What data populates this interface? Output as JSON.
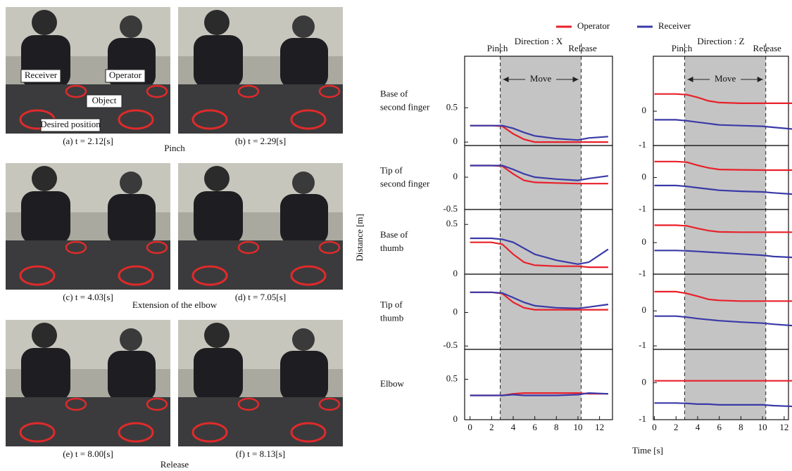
{
  "photos": [
    {
      "caption": "(a) t = 2.12[s]"
    },
    {
      "caption": "(b) t = 2.29[s]"
    },
    {
      "caption": "(c) t = 4.03[s]"
    },
    {
      "caption": "(d) t = 7.05[s]"
    },
    {
      "caption": "(e) t = 8.00[s]"
    },
    {
      "caption": "(f) t = 8.13[s]"
    }
  ],
  "photo_groups": [
    "Pinch",
    "Extension of the elbow",
    "Release"
  ],
  "photo_labels": {
    "receiver": "Receiver",
    "operator": "Operator",
    "object": "Object",
    "desired": "Desired position"
  },
  "figure": {
    "ylabel": "Distance [m]",
    "xlabel": "Time [s]",
    "rows": [
      [
        "Base of",
        "second finger"
      ],
      [
        "Tip of",
        "second finger"
      ],
      [
        "Base of",
        "thumb"
      ],
      [
        "Tip of",
        "thumb"
      ],
      [
        "Elbow"
      ]
    ],
    "pinch": "Pinch",
    "release": "Release",
    "move": "Move",
    "move_interval": [
      2.8,
      10.3
    ]
  },
  "chart_data": [
    {
      "type": "line",
      "title": "Direction : X",
      "x": [
        0,
        2,
        3,
        4,
        5,
        6,
        8,
        10,
        11,
        12.8
      ],
      "xlim": [
        -0.5,
        13.2
      ],
      "ylim": [
        -0.05,
        1.25
      ],
      "yticks": [
        0,
        0.5
      ],
      "series": [
        {
          "name": "Operator",
          "color": "#e8202a",
          "values": [
            0.24,
            0.24,
            0.23,
            0.12,
            0.04,
            0.0,
            0.0,
            0.0,
            0.0,
            0.0
          ]
        },
        {
          "name": "Receiver",
          "color": "#3a3aa8",
          "values": [
            0.24,
            0.24,
            0.24,
            0.2,
            0.14,
            0.09,
            0.05,
            0.03,
            0.06,
            0.08
          ]
        }
      ]
    },
    {
      "type": "line",
      "x": [
        0,
        2,
        3,
        4,
        5,
        6,
        8,
        10,
        11,
        12.8
      ],
      "xlim": [
        -0.5,
        13.2
      ],
      "ylim": [
        -0.5,
        0.49
      ],
      "yticks": [
        -0.5,
        0
      ],
      "series": [
        {
          "name": "Operator",
          "color": "#e8202a",
          "values": [
            0.18,
            0.18,
            0.17,
            0.05,
            -0.05,
            -0.08,
            -0.09,
            -0.1,
            -0.1,
            -0.1
          ]
        },
        {
          "name": "Receiver",
          "color": "#3a3aa8",
          "values": [
            0.18,
            0.18,
            0.18,
            0.12,
            0.05,
            0.0,
            -0.03,
            -0.05,
            -0.02,
            0.02
          ]
        }
      ]
    },
    {
      "type": "line",
      "x": [
        0,
        2,
        3,
        4,
        5,
        6,
        8,
        10,
        11,
        12.8
      ],
      "xlim": [
        -0.5,
        13.2
      ],
      "ylim": [
        0,
        0.65
      ],
      "yticks": [
        0,
        0.5
      ],
      "series": [
        {
          "name": "Operator",
          "color": "#e8202a",
          "values": [
            0.32,
            0.32,
            0.3,
            0.2,
            0.12,
            0.09,
            0.08,
            0.08,
            0.07,
            0.07
          ]
        },
        {
          "name": "Receiver",
          "color": "#3a3aa8",
          "values": [
            0.36,
            0.36,
            0.35,
            0.32,
            0.26,
            0.2,
            0.14,
            0.1,
            0.12,
            0.25
          ]
        }
      ]
    },
    {
      "type": "line",
      "x": [
        0,
        2,
        3,
        4,
        5,
        6,
        8,
        10,
        11,
        12.8
      ],
      "xlim": [
        -0.5,
        13.2
      ],
      "ylim": [
        -0.55,
        0.57
      ],
      "yticks": [
        -0.5,
        0
      ],
      "series": [
        {
          "name": "Operator",
          "color": "#e8202a",
          "values": [
            0.3,
            0.3,
            0.28,
            0.15,
            0.07,
            0.04,
            0.04,
            0.04,
            0.04,
            0.04
          ]
        },
        {
          "name": "Receiver",
          "color": "#3a3aa8",
          "values": [
            0.3,
            0.3,
            0.29,
            0.22,
            0.15,
            0.1,
            0.07,
            0.06,
            0.08,
            0.12
          ]
        }
      ]
    },
    {
      "type": "line",
      "x": [
        0,
        2,
        3,
        4,
        5,
        6,
        8,
        10,
        11,
        12.8
      ],
      "xlim": [
        -0.5,
        13.2
      ],
      "ylim": [
        0,
        0.87
      ],
      "yticks": [
        0,
        0.5
      ],
      "xticks": [
        0,
        2,
        4,
        6,
        8,
        10,
        12
      ],
      "series": [
        {
          "name": "Operator",
          "color": "#e8202a",
          "values": [
            0.3,
            0.3,
            0.3,
            0.32,
            0.33,
            0.33,
            0.33,
            0.33,
            0.32,
            0.32
          ]
        },
        {
          "name": "Receiver",
          "color": "#3a3aa8",
          "values": [
            0.3,
            0.3,
            0.3,
            0.31,
            0.3,
            0.3,
            0.3,
            0.31,
            0.33,
            0.32
          ]
        }
      ]
    },
    {
      "type": "line",
      "title": "Direction : Z",
      "x": [
        0,
        2,
        3,
        4,
        5,
        6,
        8,
        10,
        11,
        12.8
      ],
      "xlim": [
        -0.1,
        12.4
      ],
      "ylim": [
        -1,
        1.6
      ],
      "yticks": [
        -1,
        0
      ],
      "series": [
        {
          "name": "Operator",
          "color": "#e8202a",
          "values": [
            0.5,
            0.5,
            0.48,
            0.4,
            0.3,
            0.25,
            0.23,
            0.23,
            0.23,
            0.23
          ]
        },
        {
          "name": "Receiver",
          "color": "#3a3aa8",
          "values": [
            -0.25,
            -0.25,
            -0.28,
            -0.32,
            -0.36,
            -0.4,
            -0.42,
            -0.44,
            -0.47,
            -0.52
          ]
        }
      ]
    },
    {
      "type": "line",
      "x": [
        0,
        2,
        3,
        4,
        5,
        6,
        8,
        10,
        11,
        12.8
      ],
      "xlim": [
        -0.1,
        12.4
      ],
      "ylim": [
        -1,
        1
      ],
      "yticks": [
        -1,
        0
      ],
      "series": [
        {
          "name": "Operator",
          "color": "#e8202a",
          "values": [
            0.5,
            0.5,
            0.48,
            0.38,
            0.3,
            0.25,
            0.24,
            0.23,
            0.23,
            0.23
          ]
        },
        {
          "name": "Receiver",
          "color": "#3a3aa8",
          "values": [
            -0.25,
            -0.25,
            -0.28,
            -0.32,
            -0.36,
            -0.4,
            -0.43,
            -0.45,
            -0.48,
            -0.52
          ]
        }
      ]
    },
    {
      "type": "line",
      "x": [
        0,
        2,
        3,
        4,
        5,
        6,
        8,
        10,
        11,
        12.8
      ],
      "xlim": [
        -0.1,
        12.4
      ],
      "ylim": [
        -1,
        1.05
      ],
      "yticks": [
        -1,
        0
      ],
      "series": [
        {
          "name": "Operator",
          "color": "#e8202a",
          "values": [
            0.55,
            0.55,
            0.53,
            0.45,
            0.38,
            0.34,
            0.33,
            0.33,
            0.33,
            0.33
          ]
        },
        {
          "name": "Receiver",
          "color": "#3a3aa8",
          "values": [
            -0.25,
            -0.25,
            -0.26,
            -0.28,
            -0.3,
            -0.32,
            -0.36,
            -0.4,
            -0.44,
            -0.47
          ]
        }
      ]
    },
    {
      "type": "line",
      "x": [
        0,
        2,
        3,
        4,
        5,
        6,
        8,
        10,
        11,
        12.8
      ],
      "xlim": [
        -0.1,
        12.4
      ],
      "ylim": [
        -1.1,
        1.05
      ],
      "yticks": [
        -1,
        0
      ],
      "series": [
        {
          "name": "Operator",
          "color": "#e8202a",
          "values": [
            0.55,
            0.55,
            0.5,
            0.42,
            0.33,
            0.3,
            0.28,
            0.28,
            0.28,
            0.28
          ]
        },
        {
          "name": "Receiver",
          "color": "#3a3aa8",
          "values": [
            -0.15,
            -0.15,
            -0.18,
            -0.22,
            -0.25,
            -0.28,
            -0.32,
            -0.35,
            -0.38,
            -0.42
          ]
        }
      ]
    },
    {
      "type": "line",
      "x": [
        0,
        2,
        3,
        4,
        5,
        6,
        8,
        10,
        11,
        12.8
      ],
      "xlim": [
        -0.1,
        12.4
      ],
      "ylim": [
        -1,
        0.9
      ],
      "yticks": [
        -1,
        0
      ],
      "xticks": [
        0,
        2,
        4,
        6,
        8,
        10,
        12
      ],
      "series": [
        {
          "name": "Operator",
          "color": "#e8202a",
          "values": [
            0.05,
            0.05,
            0.05,
            0.05,
            0.05,
            0.05,
            0.05,
            0.05,
            0.05,
            0.05
          ]
        },
        {
          "name": "Receiver",
          "color": "#3a3aa8",
          "values": [
            -0.55,
            -0.55,
            -0.56,
            -0.58,
            -0.58,
            -0.6,
            -0.6,
            -0.6,
            -0.62,
            -0.64
          ]
        }
      ]
    }
  ]
}
